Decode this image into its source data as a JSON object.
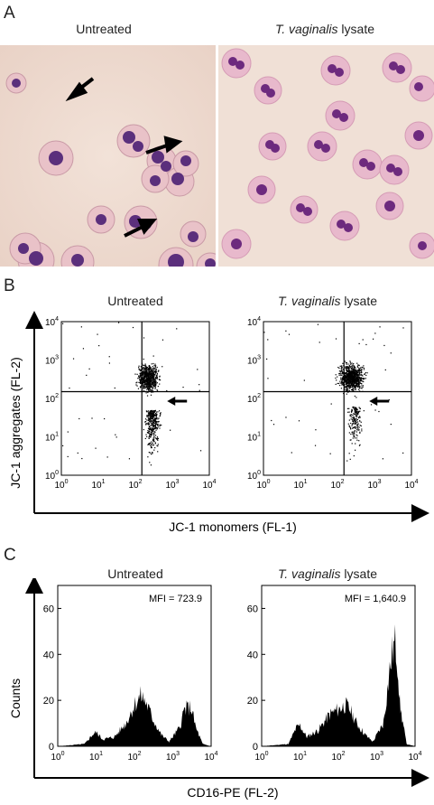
{
  "panels": {
    "A": {
      "letter": "A",
      "left_title": "Untreated",
      "right_title_italic": "T. vaginalis",
      "right_title_rest": " lysate"
    },
    "B": {
      "letter": "B",
      "left_title": "Untreated",
      "right_title_italic": "T. vaginalis",
      "right_title_rest": " lysate",
      "ylabel": "JC-1 aggregates (FL-2)",
      "xlabel": "JC-1 monomers (FL-1)"
    },
    "C": {
      "letter": "C",
      "left_title": "Untreated",
      "right_title_italic": "T. vaginalis",
      "right_title_rest": " lysate",
      "ylabel": "Counts",
      "xlabel": "CD16-PE (FL-2)",
      "mfi_left": "MFI = 723.9",
      "mfi_right": "MFI = 1,640.9"
    }
  },
  "chart_data": [
    {
      "type": "scatter",
      "title": "Untreated",
      "xscale": "log",
      "yscale": "log",
      "xlim": [
        1,
        10000
      ],
      "ylim": [
        1,
        10000
      ],
      "xticks": [
        "10^0",
        "10^1",
        "10^2",
        "10^3",
        "10^4"
      ],
      "yticks": [
        "10^0",
        "10^1",
        "10^2",
        "10^3",
        "10^4"
      ],
      "quadrant_gate": {
        "x": 150,
        "y": 150
      }
    },
    {
      "type": "scatter",
      "title": "T. vaginalis lysate",
      "xscale": "log",
      "yscale": "log",
      "xlim": [
        1,
        10000
      ],
      "ylim": [
        1,
        10000
      ],
      "quadrant_gate": {
        "x": 150,
        "y": 150
      }
    },
    {
      "type": "area",
      "title": "Untreated",
      "xscale": "log",
      "xlim": [
        1,
        10000
      ],
      "ylim": [
        0,
        70
      ],
      "yticks": [
        0,
        20,
        40,
        60
      ],
      "annotation": "MFI = 723.9",
      "x": [
        1,
        5,
        8,
        10,
        15,
        30,
        60,
        100,
        150,
        200,
        300,
        500,
        800,
        1500,
        2000,
        3000,
        4000,
        6000,
        10000
      ],
      "values": [
        0,
        1,
        5,
        6,
        3,
        4,
        10,
        18,
        22,
        19,
        12,
        5,
        2,
        8,
        16,
        17,
        8,
        1,
        0
      ]
    },
    {
      "type": "area",
      "title": "T. vaginalis lysate",
      "xscale": "log",
      "xlim": [
        1,
        10000
      ],
      "ylim": [
        0,
        70
      ],
      "yticks": [
        0,
        20,
        40,
        60
      ],
      "annotation": "MFI = 1,640.9",
      "x": [
        1,
        5,
        8,
        10,
        15,
        30,
        60,
        100,
        150,
        200,
        300,
        500,
        800,
        1500,
        2000,
        2500,
        3000,
        3500,
        4000,
        6000,
        10000
      ],
      "values": [
        0,
        1,
        8,
        9,
        4,
        7,
        14,
        16,
        18,
        16,
        10,
        5,
        2,
        10,
        28,
        40,
        45,
        38,
        18,
        1,
        0
      ]
    }
  ]
}
